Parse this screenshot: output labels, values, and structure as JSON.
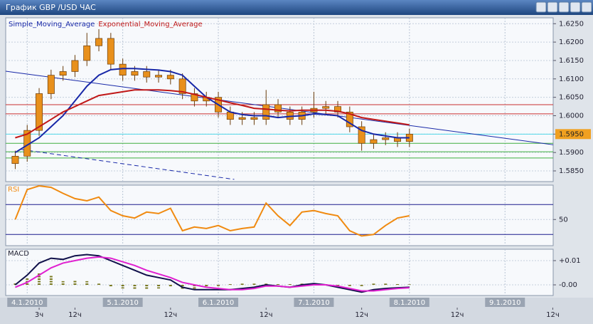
{
  "window": {
    "title": "График GBP /USD ЧАС"
  },
  "chart_data": [
    {
      "type": "candlestick",
      "x": [
        -3,
        0,
        3,
        6,
        9,
        12,
        15,
        18,
        21,
        24,
        27,
        30,
        33,
        36,
        39,
        42,
        45,
        48,
        51,
        54,
        57,
        60,
        63,
        66,
        69,
        72,
        75,
        78,
        81,
        84,
        87,
        90,
        93,
        96
      ],
      "open": [
        1.587,
        1.589,
        1.596,
        1.606,
        1.611,
        1.612,
        1.615,
        1.619,
        1.621,
        1.614,
        1.611,
        1.612,
        1.6105,
        1.611,
        1.61,
        1.606,
        1.604,
        1.605,
        1.601,
        1.599,
        1.5995,
        1.599,
        1.603,
        1.601,
        1.599,
        1.601,
        1.602,
        1.6025,
        1.601,
        1.597,
        1.5925,
        1.5935,
        1.594,
        1.593
      ],
      "high": [
        1.5905,
        1.5975,
        1.6075,
        1.6125,
        1.6135,
        1.6165,
        1.6225,
        1.6235,
        1.6225,
        1.6155,
        1.6135,
        1.6135,
        1.6125,
        1.6125,
        1.6115,
        1.6075,
        1.6065,
        1.6065,
        1.6025,
        1.601,
        1.601,
        1.607,
        1.6045,
        1.6025,
        1.6025,
        1.6065,
        1.604,
        1.604,
        1.6025,
        1.5985,
        1.595,
        1.5955,
        1.5955,
        1.5965
      ],
      "low": [
        1.5855,
        1.5875,
        1.5945,
        1.6045,
        1.6095,
        1.6105,
        1.6135,
        1.6175,
        1.6125,
        1.6095,
        1.6095,
        1.609,
        1.609,
        1.6085,
        1.6045,
        1.6025,
        1.6025,
        1.5995,
        1.5975,
        1.5975,
        1.5975,
        1.5975,
        1.5995,
        1.5975,
        1.5975,
        1.5995,
        1.6005,
        1.5995,
        1.5955,
        1.5905,
        1.591,
        1.592,
        1.5915,
        1.5915
      ],
      "close": [
        1.589,
        1.596,
        1.606,
        1.611,
        1.612,
        1.615,
        1.619,
        1.621,
        1.614,
        1.611,
        1.612,
        1.6105,
        1.611,
        1.61,
        1.606,
        1.604,
        1.605,
        1.601,
        1.599,
        1.5995,
        1.599,
        1.603,
        1.601,
        1.599,
        1.601,
        1.602,
        1.6025,
        1.601,
        1.597,
        1.5925,
        1.5935,
        1.594,
        1.593,
        1.595
      ],
      "candle_color": "#e8901c",
      "series": [
        {
          "name": "Simple_Moving_Average",
          "color": "#1828a8",
          "values": [
            1.59,
            1.592,
            1.594,
            1.597,
            1.6,
            1.604,
            1.608,
            1.611,
            1.6125,
            1.6128,
            1.6128,
            1.6126,
            1.6124,
            1.612,
            1.611,
            1.608,
            1.605,
            1.603,
            1.601,
            1.6003,
            1.6,
            1.6,
            1.5995,
            1.5998,
            1.6,
            1.6005,
            1.6003,
            1.6,
            1.598,
            1.596,
            1.595,
            1.5945,
            1.594,
            1.594
          ]
        },
        {
          "name": "Exponential_Moving_Average",
          "color": "#c01818",
          "values": [
            1.594,
            1.595,
            1.597,
            1.599,
            1.601,
            1.6025,
            1.604,
            1.6055,
            1.606,
            1.6065,
            1.607,
            1.607,
            1.607,
            1.6068,
            1.6065,
            1.6058,
            1.605,
            1.6043,
            1.6035,
            1.6028,
            1.602,
            1.6018,
            1.6015,
            1.6013,
            1.6015,
            1.6015,
            1.6015,
            1.6012,
            1.6005,
            1.5995,
            1.599,
            1.5985,
            1.598,
            1.5975
          ]
        }
      ],
      "levels": [
        {
          "value": 1.603,
          "color": "#c83030"
        },
        {
          "value": 1.6005,
          "color": "#c83030"
        },
        {
          "value": 1.595,
          "color": "#50d8e8"
        },
        {
          "value": 1.5925,
          "color": "#40b040"
        },
        {
          "value": 1.5902,
          "color": "#40b040"
        },
        {
          "value": 1.5885,
          "color": "#40b040"
        }
      ],
      "trendlines": [
        {
          "x": [
            -5.4,
            132.1
          ],
          "y": [
            1.6121,
            1.5921
          ],
          "color": "#1828a8"
        },
        {
          "x": [
            -1.4,
            52
          ],
          "y": [
            1.5908,
            1.5827
          ],
          "color": "#1828a8",
          "dashed": true
        }
      ],
      "last_price": {
        "value": 1.595,
        "label": "1.5950",
        "color": "#f0a020"
      },
      "xlim": [
        -5.4,
        132.1
      ],
      "ylim": [
        1.5821,
        1.6266
      ],
      "yticks": [
        {
          "value": 1.625,
          "label": "1.6250"
        },
        {
          "value": 1.62,
          "label": "1.6200"
        },
        {
          "value": 1.615,
          "label": "1.6150"
        },
        {
          "value": 1.61,
          "label": "1.6100"
        },
        {
          "value": 1.605,
          "label": "1.6050"
        },
        {
          "value": 1.6,
          "label": "1.6000"
        },
        {
          "value": 1.595,
          "label": "1.5950"
        },
        {
          "value": 1.59,
          "label": "1.5900"
        },
        {
          "value": 1.585,
          "label": "1.5850"
        }
      ],
      "grid": true
    },
    {
      "type": "line",
      "title": "RSI",
      "x": [
        -3,
        0,
        3,
        6,
        9,
        12,
        15,
        18,
        21,
        24,
        27,
        30,
        33,
        36,
        39,
        42,
        45,
        48,
        51,
        54,
        57,
        60,
        63,
        66,
        69,
        72,
        75,
        78,
        81,
        84,
        87,
        90,
        93,
        96
      ],
      "series": [
        {
          "color": "#f08a10",
          "values": [
            50,
            90,
            95,
            93,
            85,
            78,
            75,
            80,
            62,
            55,
            52,
            60,
            58,
            65,
            35,
            40,
            38,
            42,
            35,
            38,
            40,
            72,
            55,
            42,
            60,
            62,
            58,
            55,
            35,
            28,
            30,
            42,
            52,
            55
          ]
        }
      ],
      "levels": [
        {
          "value": 70,
          "color": "#1a1a8c"
        },
        {
          "value": 30,
          "color": "#1a1a8c"
        }
      ],
      "xlim": [
        -5.4,
        132.1
      ],
      "ylim": [
        15,
        96
      ],
      "yticks": [
        50
      ],
      "grid": true
    },
    {
      "type": "line",
      "title": "MACD",
      "x": [
        -3,
        0,
        3,
        6,
        9,
        12,
        15,
        18,
        21,
        24,
        27,
        30,
        33,
        36,
        39,
        42,
        45,
        48,
        51,
        54,
        57,
        60,
        63,
        66,
        69,
        72,
        75,
        78,
        81,
        84,
        87,
        90,
        93,
        96
      ],
      "series": [
        {
          "style": "bars",
          "color": "#7a7a22",
          "values": [
            0.001,
            0.003,
            0.005,
            0.004,
            0.0015,
            0.002,
            0.0015,
            0.0005,
            -0.001,
            -0.0015,
            -0.002,
            -0.002,
            -0.0015,
            -0.001,
            -0.002,
            -0.002,
            -0.001,
            -0.0005,
            0,
            0.0005,
            0.0005,
            0.0005,
            0,
            0,
            0.0005,
            0.0005,
            0,
            -0.0005,
            -0.0005,
            -0.0005,
            0.0005,
            0.0005,
            0.0003,
            0.0002
          ]
        },
        {
          "style": "line",
          "color": "#10104a",
          "values": [
            0,
            0.004,
            0.009,
            0.011,
            0.0105,
            0.012,
            0.0125,
            0.012,
            0.01,
            0.008,
            0.006,
            0.004,
            0.003,
            0.002,
            -0.001,
            -0.002,
            -0.002,
            -0.002,
            -0.002,
            -0.0015,
            -0.001,
            0,
            -0.0005,
            -0.001,
            0,
            0.0005,
            0,
            -0.001,
            -0.002,
            -0.003,
            -0.002,
            -0.0015,
            -0.0012,
            -0.001
          ]
        },
        {
          "style": "line",
          "color": "#e020d0",
          "values": [
            -0.001,
            0.001,
            0.004,
            0.007,
            0.009,
            0.01,
            0.011,
            0.0115,
            0.011,
            0.0095,
            0.008,
            0.006,
            0.0045,
            0.003,
            0.001,
            0,
            -0.001,
            -0.0015,
            -0.002,
            -0.002,
            -0.0015,
            -0.0005,
            -0.0005,
            -0.001,
            -0.0005,
            0,
            0,
            -0.0005,
            -0.0015,
            -0.0025,
            -0.0025,
            -0.002,
            -0.0015,
            -0.0012
          ]
        }
      ],
      "xlim": [
        -5.4,
        132.1
      ],
      "ylim": [
        -0.0044,
        0.0147
      ],
      "yticks": [
        {
          "value": 0.01,
          "label": "+0.01"
        },
        {
          "value": 0,
          "label": "-0.00"
        }
      ],
      "xticks": [
        {
          "value": 0,
          "label": "4.1.2010"
        },
        {
          "value": 24,
          "label": "5.1.2010"
        },
        {
          "value": 48,
          "label": "6.1.2010"
        },
        {
          "value": 72,
          "label": "7.1.2010"
        },
        {
          "value": 96,
          "label": "8.1.2010"
        },
        {
          "value": 120,
          "label": "9.1.2010"
        }
      ],
      "xticks_minor": [
        {
          "value": 3,
          "label": "3ч"
        },
        {
          "value": 12,
          "label": "12ч"
        },
        {
          "value": 36,
          "label": "12ч"
        },
        {
          "value": 60,
          "label": "12ч"
        },
        {
          "value": 84,
          "label": "12ч"
        },
        {
          "value": 108,
          "label": "12ч"
        },
        {
          "value": 132,
          "label": "12ч"
        }
      ],
      "grid": true
    }
  ]
}
